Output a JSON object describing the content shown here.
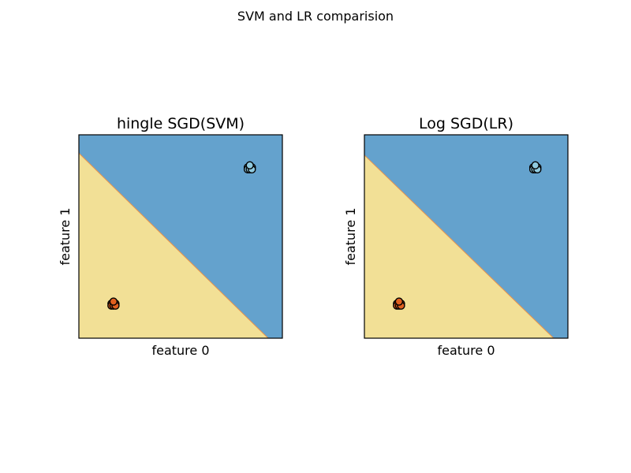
{
  "suptitle": "SVM and LR comparision",
  "colors": {
    "class_0_region": "#f2e096",
    "class_1_region": "#64a2cd",
    "boundary_line": "#e8934d",
    "class_0_point": "#e0601f",
    "class_1_point": "#8fcadf",
    "point_edge": "#000000"
  },
  "chart_data": [
    {
      "type": "scatter",
      "title": "hingle SGD(SVM)",
      "xlabel": "feature 0",
      "ylabel": "feature 1",
      "ticks_visible": false,
      "boundary": [
        [
          0.0,
          0.91
        ],
        [
          0.93,
          0.0
        ]
      ],
      "series": [
        {
          "class": 0,
          "points": [
            [
              0.16,
              0.17
            ],
            [
              0.17,
              0.17
            ],
            [
              0.18,
              0.17
            ],
            [
              0.16,
              0.16
            ],
            [
              0.17,
              0.16
            ],
            [
              0.18,
              0.16
            ],
            [
              0.17,
              0.18
            ]
          ]
        },
        {
          "class": 1,
          "points": [
            [
              0.83,
              0.84
            ],
            [
              0.84,
              0.84
            ],
            [
              0.85,
              0.84
            ],
            [
              0.83,
              0.83
            ],
            [
              0.84,
              0.83
            ],
            [
              0.85,
              0.83
            ],
            [
              0.84,
              0.85
            ]
          ]
        }
      ]
    },
    {
      "type": "scatter",
      "title": "Log SGD(LR)",
      "xlabel": "feature 0",
      "ylabel": "feature 1",
      "ticks_visible": false,
      "boundary": [
        [
          0.0,
          0.9
        ],
        [
          0.93,
          0.0
        ]
      ],
      "series": [
        {
          "class": 0,
          "points": [
            [
              0.16,
              0.17
            ],
            [
              0.17,
              0.17
            ],
            [
              0.18,
              0.17
            ],
            [
              0.16,
              0.16
            ],
            [
              0.17,
              0.16
            ],
            [
              0.18,
              0.16
            ],
            [
              0.17,
              0.18
            ]
          ]
        },
        {
          "class": 1,
          "points": [
            [
              0.83,
              0.84
            ],
            [
              0.84,
              0.84
            ],
            [
              0.85,
              0.84
            ],
            [
              0.83,
              0.83
            ],
            [
              0.84,
              0.83
            ],
            [
              0.85,
              0.83
            ],
            [
              0.84,
              0.85
            ]
          ]
        }
      ]
    }
  ]
}
